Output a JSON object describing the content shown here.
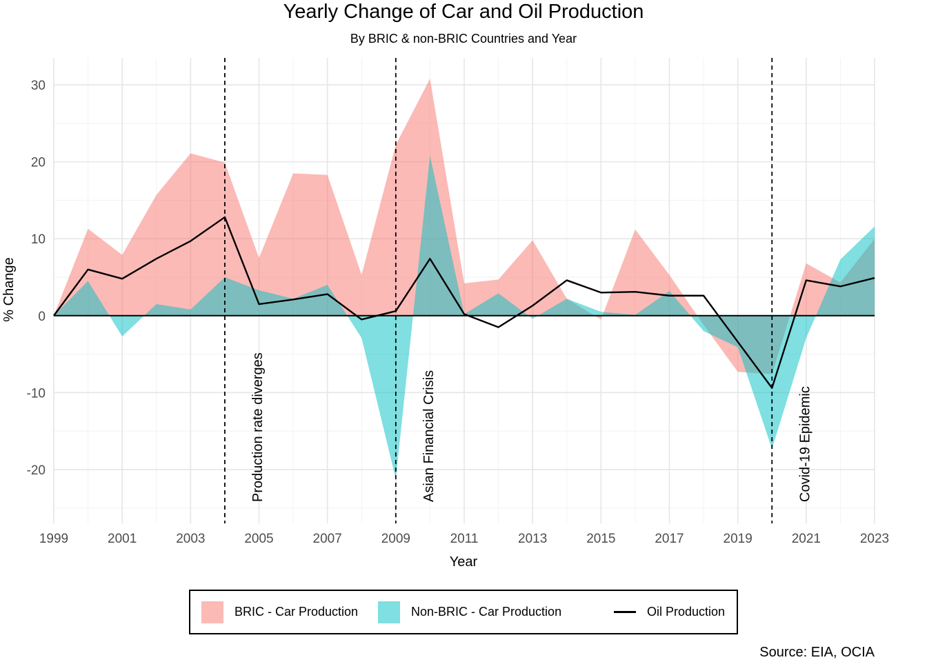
{
  "chart_data": {
    "type": "area",
    "title": "Yearly Change of Car and Oil Production",
    "subtitle": "By BRIC & non-BRIC Countries and Year",
    "xlabel": "Year",
    "ylabel": "% Change",
    "caption": "Source: EIA, OCIA",
    "x": [
      1999,
      2000,
      2001,
      2002,
      2003,
      2004,
      2005,
      2006,
      2007,
      2008,
      2009,
      2010,
      2011,
      2012,
      2013,
      2014,
      2015,
      2016,
      2017,
      2018,
      2019,
      2020,
      2021,
      2022,
      2023
    ],
    "xticks": [
      1999,
      2001,
      2003,
      2005,
      2007,
      2009,
      2011,
      2013,
      2015,
      2017,
      2019,
      2021,
      2023
    ],
    "yticks": [
      -20,
      -10,
      0,
      10,
      20,
      30
    ],
    "xlim": [
      1999,
      2023
    ],
    "ylim": [
      -27,
      33.5
    ],
    "grid": true,
    "legend_position": "bottom",
    "series": [
      {
        "name": "BRIC - Car Production",
        "type": "area",
        "color": "#F8766D",
        "values": [
          0,
          11.3,
          7.9,
          15.7,
          21.1,
          19.9,
          7.5,
          18.5,
          18.3,
          5.3,
          22.2,
          30.8,
          4.2,
          4.7,
          9.8,
          2.2,
          -0.5,
          11.2,
          5.3,
          -1.2,
          -7.3,
          -7.6,
          6.8,
          4.3,
          10.0
        ]
      },
      {
        "name": "Non-BRIC - Car Production",
        "type": "area",
        "color": "#00BFC4",
        "values": [
          0,
          4.5,
          -2.7,
          1.5,
          0.8,
          5.0,
          3.3,
          2.2,
          4.0,
          -2.9,
          -21.2,
          20.8,
          0.2,
          2.9,
          -0.4,
          2.2,
          0.5,
          0.1,
          3.2,
          -2.0,
          -4.1,
          -17.3,
          -2.9,
          7.3,
          11.6
        ]
      },
      {
        "name": "Oil Production",
        "type": "line",
        "color": "#000000",
        "values": [
          0,
          6.0,
          4.8,
          7.4,
          9.7,
          12.8,
          1.5,
          2.1,
          2.8,
          -0.5,
          0.6,
          7.4,
          0.2,
          -1.5,
          1.3,
          4.6,
          3.0,
          3.1,
          2.6,
          2.6,
          -3.4,
          -9.4,
          4.6,
          3.8,
          4.9
        ]
      }
    ],
    "annotations": [
      {
        "x": 2004,
        "label": "Production rate diverges"
      },
      {
        "x": 2009,
        "label": "Asian Financial Crisis"
      },
      {
        "x": 2020,
        "label": "Covid-19 Epidemic"
      }
    ]
  }
}
